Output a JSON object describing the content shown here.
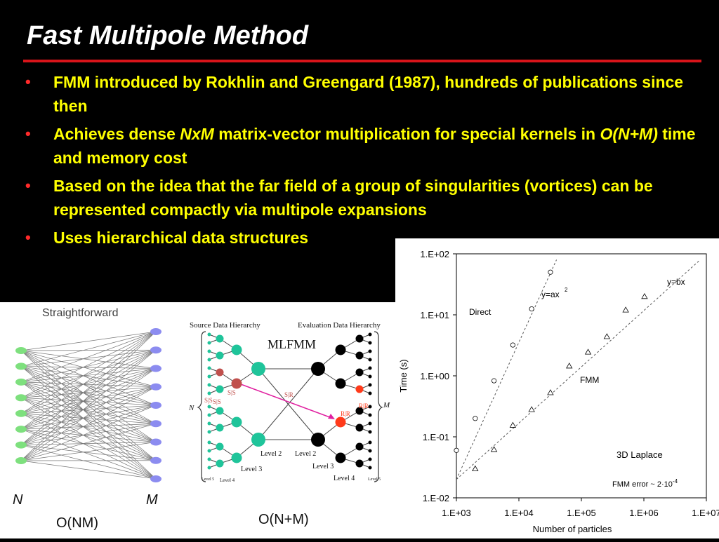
{
  "slide": {
    "title": "Fast Multipole Method",
    "bullets": [
      {
        "parts": [
          {
            "t": "FMM introduced by Rokhlin and Greengard (1987), hundreds of publications since then"
          }
        ]
      },
      {
        "parts": [
          {
            "t": "Achieves dense "
          },
          {
            "t": "NxM",
            "i": true
          },
          {
            "t": " matrix-vector multiplication for special kernels in "
          },
          {
            "t": "O(N+M)",
            "i": true
          },
          {
            "t": " time and memory cost"
          }
        ]
      },
      {
        "parts": [
          {
            "t": "Based on the idea that the far field of a group of singularities (vortices) can be represented compactly via multipole expansions"
          }
        ]
      },
      {
        "parts": [
          {
            "t": "Uses hierarchical data structures"
          }
        ]
      }
    ],
    "bullet_glyph": "•"
  },
  "straightforward": {
    "heading": "Straightforward",
    "left_label": "N",
    "right_label": "M",
    "complexity": "O(NM)",
    "left_nodes": 8,
    "right_nodes": 9,
    "left_color": "#7ee07e",
    "right_color": "#8c8cf0"
  },
  "mlfmm": {
    "source_heading": "Source Data Hierarchy",
    "eval_heading": "Evaluation Data Hierarchy",
    "name": "MLFMM",
    "left_brace_label": "N",
    "right_brace_label": "M",
    "complexity": "O(N+M)",
    "labels": {
      "ss1": "S|S",
      "ss2": "S|S",
      "ss3": "S|S",
      "sr": "S|R",
      "rr1": "R|R",
      "rr2": "R|R",
      "level2_left": "Level 2",
      "level2_right": "Level 2",
      "level3_left": "Level 3",
      "level3_right": "Level 3",
      "level4_left": "Level 4",
      "level4_right": "Level 4",
      "level5_left": "Level 5",
      "level5_right": "Level 5"
    },
    "colors": {
      "source": "#1fc49a",
      "eval": "#000000",
      "translation": "#c0504d",
      "target": "#ff3a1a",
      "arrow": "#e020a0"
    }
  },
  "chart_data": {
    "type": "scatter",
    "xlabel": "Number of particles",
    "ylabel": "Time (s)",
    "xscale": "log",
    "yscale": "log",
    "xlim": [
      1000,
      10000000
    ],
    "ylim": [
      0.01,
      100
    ],
    "xticks": [
      "1.E+03",
      "1.E+04",
      "1.E+05",
      "1.E+06",
      "1.E+07"
    ],
    "yticks": [
      "1.E-02",
      "1.E-01",
      "1.E+00",
      "1.E+01",
      "1.E+02"
    ],
    "series": [
      {
        "name": "Direct",
        "marker": "circle",
        "x": [
          1000,
          2000,
          4000,
          8000,
          16000,
          32000
        ],
        "y": [
          0.06,
          0.2,
          0.83,
          3.2,
          12.5,
          50
        ]
      },
      {
        "name": "FMM",
        "marker": "triangle",
        "x": [
          2000,
          4000,
          8000,
          16000,
          32000,
          64000,
          128000,
          256000,
          512000,
          1024000
        ],
        "y": [
          0.03,
          0.062,
          0.155,
          0.28,
          0.53,
          1.45,
          2.45,
          4.4,
          12,
          20
        ]
      }
    ],
    "fits": [
      {
        "label": "y=ax",
        "sup": "2",
        "x": [
          1000,
          40000
        ],
        "y": [
          0.02,
          80
        ]
      },
      {
        "label": "y=bx",
        "sup": "",
        "x": [
          1000,
          8000000
        ],
        "y": [
          0.02,
          80
        ]
      }
    ],
    "annotations": {
      "problem": "3D Laplace",
      "error_prefix": "FMM error  ~ 2",
      "error_dot": "·",
      "error_base": "10",
      "error_exp": "-4"
    }
  }
}
